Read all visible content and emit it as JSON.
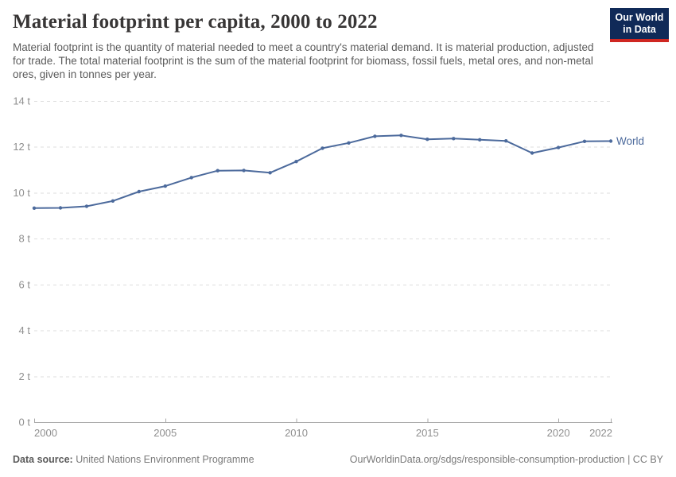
{
  "header": {
    "title": "Material footprint per capita, 2000 to 2022",
    "subtitle": "Material footprint is the quantity of material needed to meet a country's material demand. It is material production, adjusted for trade. The total material footprint is the sum of the material footprint for biomass, fossil fuels, metal ores, and non-metal ores, given in tonnes per year."
  },
  "logo": {
    "line1": "Our World",
    "line2": "in Data",
    "bg_color": "#102a58",
    "accent_color": "#cf2721"
  },
  "chart_data": {
    "type": "line",
    "title": "Material footprint per capita, 2000 to 2022",
    "x": [
      2000,
      2001,
      2002,
      2003,
      2004,
      2005,
      2006,
      2007,
      2008,
      2009,
      2010,
      2011,
      2012,
      2013,
      2014,
      2015,
      2016,
      2017,
      2018,
      2019,
      2020,
      2021,
      2022
    ],
    "series": [
      {
        "name": "World",
        "color": "#4c6a9c",
        "values": [
          9.33,
          9.34,
          9.41,
          9.64,
          10.05,
          10.29,
          10.66,
          10.96,
          10.97,
          10.87,
          11.36,
          11.94,
          12.17,
          12.46,
          12.5,
          12.33,
          12.36,
          12.31,
          12.26,
          11.73,
          11.97,
          12.24,
          12.25
        ]
      }
    ],
    "xlim": [
      2000,
      2022
    ],
    "ylim": [
      0,
      14
    ],
    "x_ticks": [
      2000,
      2005,
      2010,
      2015,
      2020,
      2022
    ],
    "y_ticks": [
      0,
      2,
      4,
      6,
      8,
      10,
      12,
      14
    ],
    "y_tick_suffix": " t",
    "grid": "horizontal-dashed",
    "legend": "line-end-label",
    "colors": {
      "gridline": "#dedede",
      "axis_line": "#a8a8a8",
      "tick_label": "#8f8f8f"
    }
  },
  "footer": {
    "datasource_label": "Data source:",
    "datasource_value": "United Nations Environment Programme",
    "link": "OurWorldinData.org/sdgs/responsible-consumption-production",
    "divider": "|",
    "license": "CC BY"
  }
}
